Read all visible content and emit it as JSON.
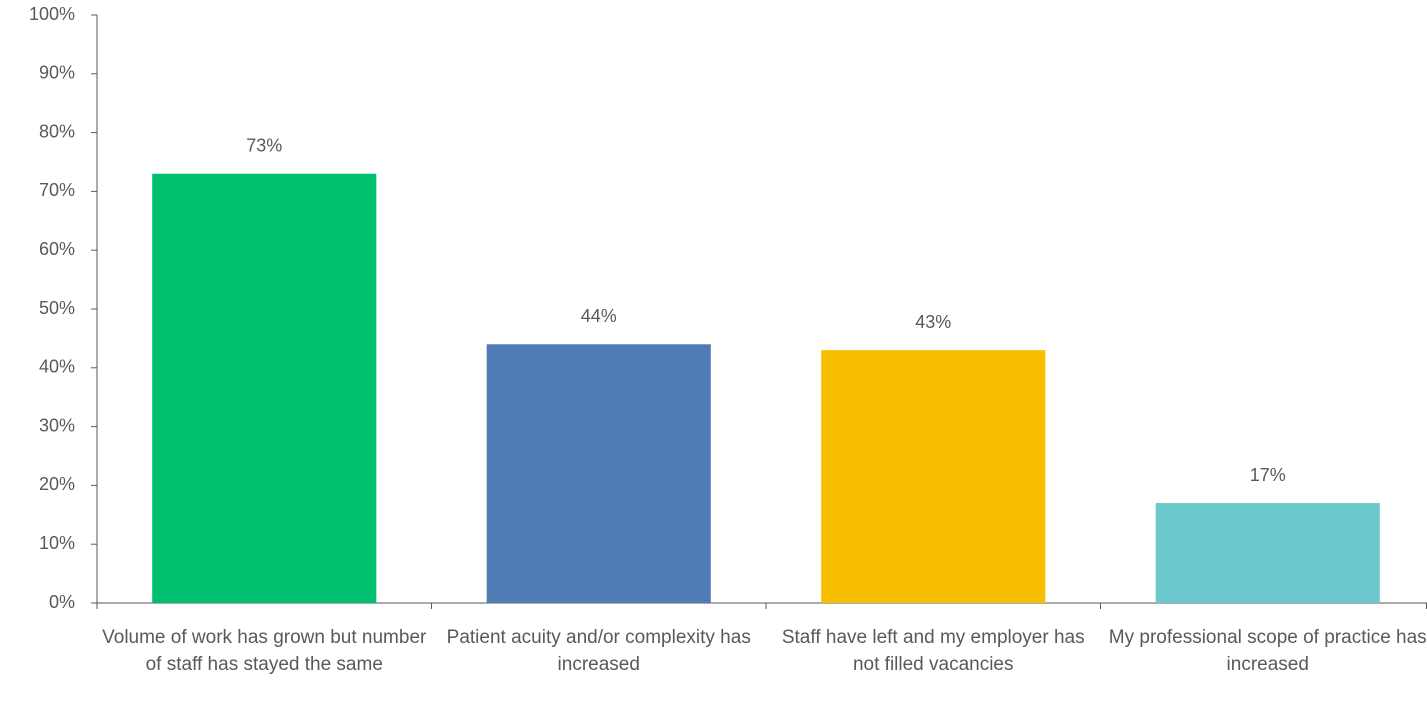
{
  "chart_data": {
    "type": "bar",
    "categories": [
      "Volume of work has grown but number of staff has stayed the same",
      "Patient acuity and/or complexity has increased",
      "Staff have left and my employer has not filled vacancies",
      "My professional scope of practice has increased"
    ],
    "values": [
      73,
      44,
      43,
      17
    ],
    "value_labels": [
      "73%",
      "44%",
      "43%",
      "17%"
    ],
    "colors": [
      "#00bf6f",
      "#507cb6",
      "#f8be00",
      "#6bc8cd"
    ],
    "ylim": [
      0,
      100
    ],
    "yticks": [
      {
        "value": 0,
        "label": "0%"
      },
      {
        "value": 10,
        "label": "10%"
      },
      {
        "value": 20,
        "label": "20%"
      },
      {
        "value": 30,
        "label": "30%"
      },
      {
        "value": 40,
        "label": "40%"
      },
      {
        "value": 50,
        "label": "50%"
      },
      {
        "value": 60,
        "label": "60%"
      },
      {
        "value": 70,
        "label": "70%"
      },
      {
        "value": 80,
        "label": "80%"
      },
      {
        "value": 90,
        "label": "90%"
      },
      {
        "value": 100,
        "label": "100%"
      }
    ],
    "grid": false
  }
}
